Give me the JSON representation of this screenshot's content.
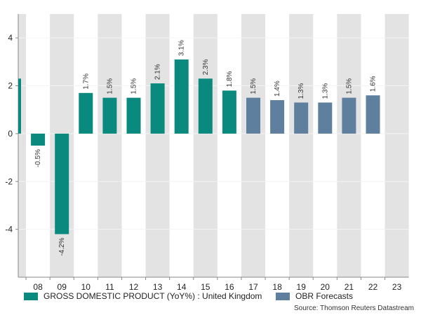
{
  "chart_data": {
    "type": "bar",
    "title": "",
    "xlabel": "",
    "ylabel": "",
    "ylim": [
      -6,
      5
    ],
    "yticks": [
      -4,
      -2,
      0,
      2,
      4
    ],
    "categories": [
      "",
      "08",
      "09",
      "10",
      "11",
      "12",
      "13",
      "14",
      "15",
      "16",
      "17",
      "18",
      "19",
      "20",
      "21",
      "22",
      "23"
    ],
    "series": [
      {
        "name": "GROSS DOMESTIC PRODUCT (YoY%) : United Kingdom",
        "color": "#0a8a7e",
        "values": [
          2.3,
          -0.5,
          -4.2,
          1.7,
          1.5,
          1.5,
          2.1,
          3.1,
          2.3,
          1.8,
          null,
          null,
          null,
          null,
          null,
          null,
          null
        ],
        "labels": [
          "",
          "-0.5%",
          "-4.2%",
          "1.7%",
          "1.5%",
          "1.5%",
          "2.1%",
          "3.1%",
          "2.3%",
          "1.8%",
          "",
          "",
          "",
          "",
          "",
          "",
          ""
        ]
      },
      {
        "name": "OBR Forecasts",
        "color": "#5f7f9f",
        "values": [
          null,
          null,
          null,
          null,
          null,
          null,
          null,
          null,
          null,
          null,
          1.5,
          1.4,
          1.3,
          1.3,
          1.5,
          1.6,
          null
        ],
        "labels": [
          "",
          "",
          "",
          "",
          "",
          "",
          "",
          "",
          "",
          "",
          "1.5%",
          "1.4%",
          "1.3%",
          "1.3%",
          "1.5%",
          "1.6%",
          ""
        ]
      }
    ],
    "shaded_categories": [
      "",
      "09",
      "11",
      "13",
      "15",
      "17",
      "19",
      "21",
      "23"
    ],
    "grid": true,
    "legend_position": "bottom",
    "source": "Source: Thomson Reuters Datastream"
  }
}
